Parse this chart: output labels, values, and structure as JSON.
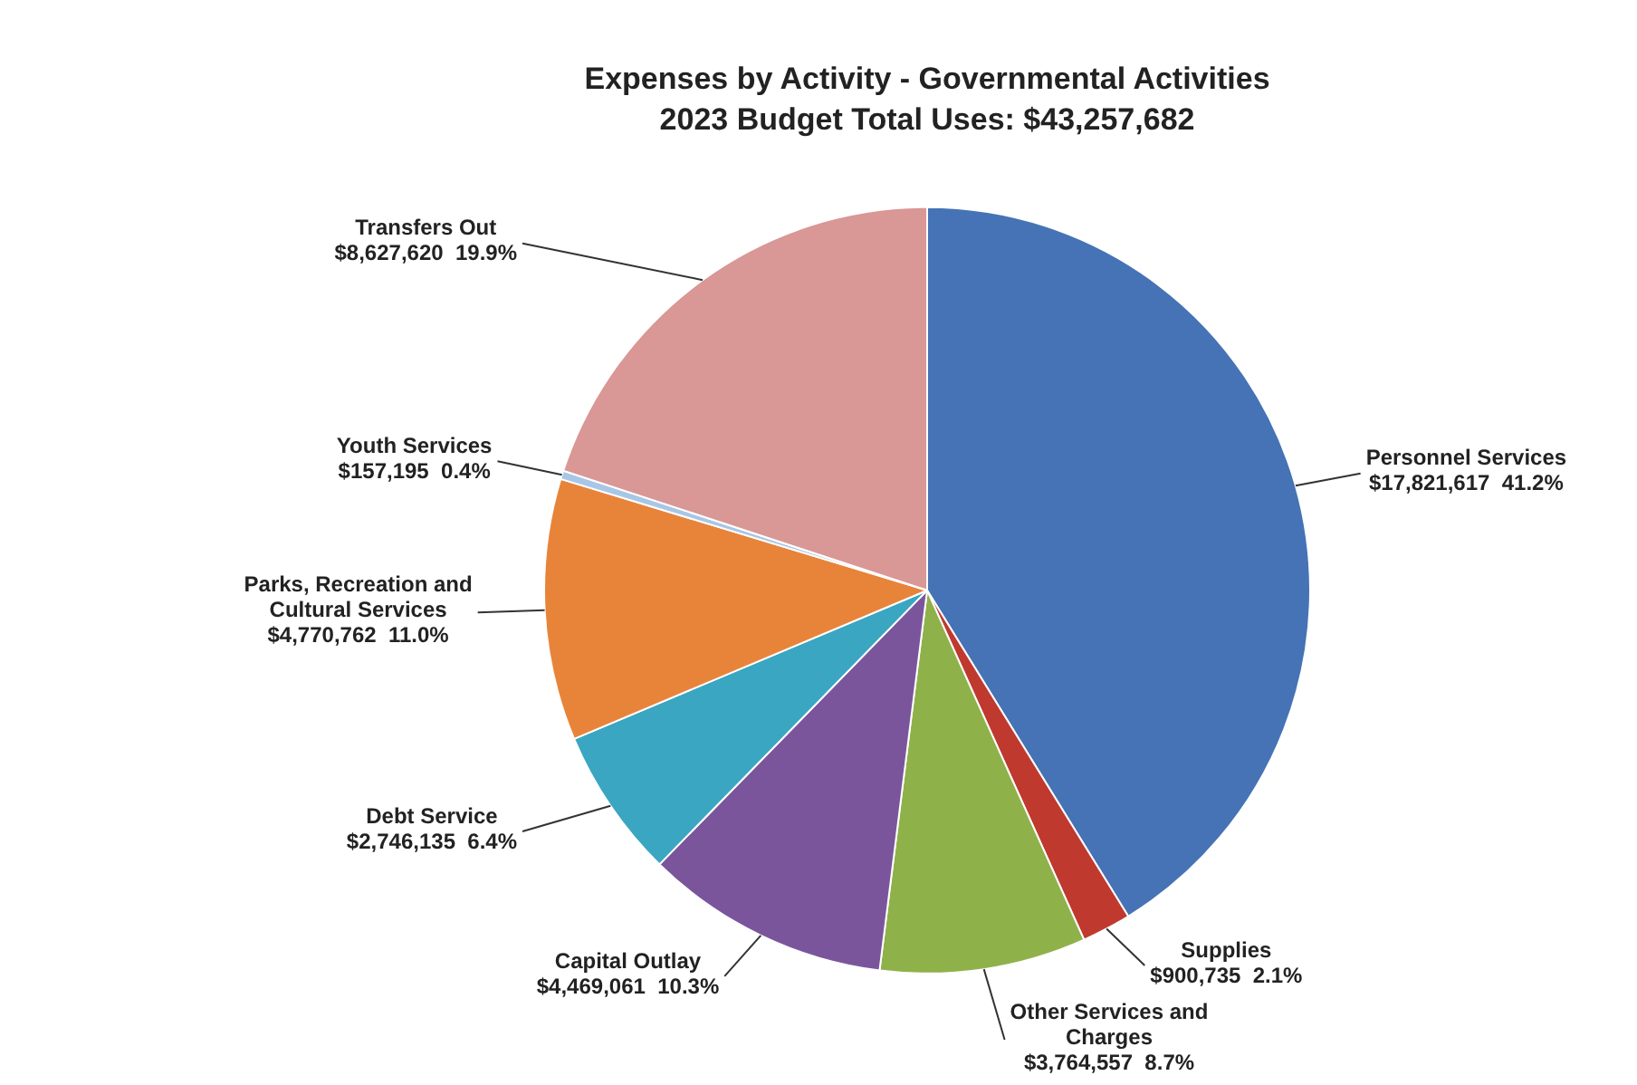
{
  "chart_data": {
    "type": "pie",
    "title": "Expenses by Activity - Governmental Activities",
    "subtitle": "2023 Budget Total Uses: $43,257,682",
    "categories": [
      "Personnel Services",
      "Supplies",
      "Other Services and Charges",
      "Capital Outlay",
      "Debt Service",
      "Parks, Recreation and Cultural Services",
      "Youth Services",
      "Transfers Out"
    ],
    "values": [
      17821617,
      900735,
      3764557,
      4469061,
      2746135,
      4770762,
      157195,
      8627620
    ],
    "value_labels": [
      "$17,821,617  41.2%",
      "$900,735  2.1%",
      "$3,764,557  8.7%",
      "$4,469,061  10.3%",
      "$2,746,135  6.4%",
      "$4,770,762  11.0%",
      "$157,195  0.4%",
      "$8,627,620  19.9%"
    ],
    "colors": [
      "#4573b5",
      "#c0392e",
      "#8fb14a",
      "#7a559c",
      "#3aa6c2",
      "#e8843a",
      "#a8c6e6",
      "#d99795"
    ],
    "legend": false
  }
}
